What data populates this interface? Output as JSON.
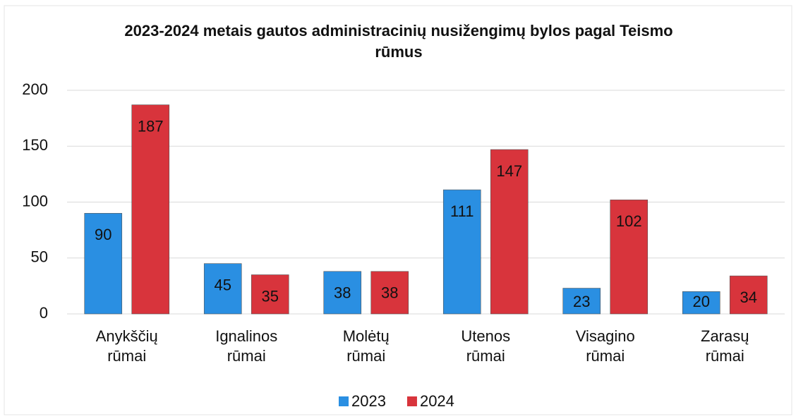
{
  "chart_data": {
    "type": "bar",
    "title": "2023-2024 metais gautos administracinių nusižengimų bylos pagal Teismo rūmus",
    "categories": [
      "Anykščių rūmai",
      "Ignalinos rūmai",
      "Molėtų rūmai",
      "Utenos rūmai",
      "Visagino rūmai",
      "Zarasų rūmai"
    ],
    "series": [
      {
        "name": "2023",
        "color": "#2a8fe2",
        "values": [
          90,
          45,
          38,
          111,
          23,
          20
        ]
      },
      {
        "name": "2024",
        "color": "#d8343c",
        "values": [
          187,
          35,
          38,
          147,
          102,
          34
        ]
      }
    ],
    "ylim": [
      0,
      200
    ],
    "yticks": [
      0,
      50,
      100,
      150,
      200
    ],
    "grid": true,
    "legend": "bottom"
  }
}
